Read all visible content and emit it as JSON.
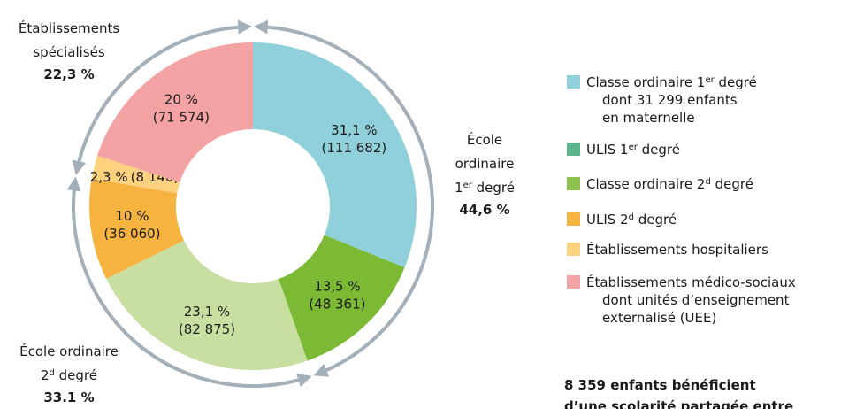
{
  "chart_data": {
    "type": "donut",
    "values": [
      31.1,
      13.5,
      23.1,
      10,
      2.3,
      20
    ],
    "value_labels": [
      "31,1 %",
      "13,5 %",
      "23,1 %",
      "10 %",
      "2,3 %",
      "20 %"
    ],
    "counts": [
      111682,
      48361,
      82875,
      36060,
      8140,
      71574
    ],
    "count_labels": [
      "(111 682)",
      "(48 361)",
      "(82 875)",
      "(36 060)",
      "(8 140)",
      "(71 574)"
    ],
    "colors": [
      "#8fd0da",
      "#7cb935",
      "#c9dfa2",
      "#f6b33f",
      "#fdd27e",
      "#f4a3a4"
    ],
    "groups": [
      {
        "lines": [
          [
            {
              "t": "École"
            }
          ],
          [
            {
              "t": "ordinaire"
            }
          ],
          [
            {
              "t": "1"
            },
            {
              "t": "er",
              "sup": true
            },
            {
              "t": " degré"
            }
          ]
        ],
        "total": 44.6,
        "total_label": "44,6 %"
      },
      {
        "lines": [
          [
            {
              "t": "École ordinaire"
            }
          ],
          [
            {
              "t": "2"
            },
            {
              "t": "d",
              "sup": true
            },
            {
              "t": " degré"
            }
          ]
        ],
        "total": 33.1,
        "total_label": "33.1 %"
      },
      {
        "lines": [
          [
            {
              "t": "Établissements"
            }
          ],
          [
            {
              "t": "spécialisés"
            }
          ]
        ],
        "total": 22.3,
        "total_label": "22,3 %"
      }
    ],
    "legend": [
      {
        "color": "#8fd0da",
        "lines": [
          [
            {
              "t": "Classe ordinaire 1"
            },
            {
              "t": "er",
              "sup": true
            },
            {
              "t": " degré"
            }
          ],
          [
            {
              "t": "dont 31 299 enfants"
            }
          ],
          [
            {
              "t": "en maternelle"
            }
          ]
        ]
      },
      {
        "color": "#5cb48c",
        "lines": [
          [
            {
              "t": "ULIS 1"
            },
            {
              "t": "er",
              "sup": true
            },
            {
              "t": " degré"
            }
          ]
        ]
      },
      {
        "color": "#8dc24c",
        "lines": [
          [
            {
              "t": "Classe ordinaire 2"
            },
            {
              "t": "d",
              "sup": true
            },
            {
              "t": " degré"
            }
          ]
        ]
      },
      {
        "color": "#f6b33f",
        "lines": [
          [
            {
              "t": "ULIS 2"
            },
            {
              "t": "d",
              "sup": true
            },
            {
              "t": " degré"
            }
          ]
        ]
      },
      {
        "color": "#fdd27e",
        "lines": [
          [
            {
              "t": "Établissements hospitaliers"
            }
          ]
        ]
      },
      {
        "color": "#f4a3a4",
        "lines": [
          [
            {
              "t": "Établissements médico-sociaux"
            }
          ],
          [
            {
              "t": "dont unités d’enseignement"
            }
          ],
          [
            {
              "t": "externalisé (UEE)"
            }
          ]
        ]
      }
    ],
    "note": [
      "8 359 enfants bénéficient",
      "d’une scolarité partagée entre"
    ]
  }
}
